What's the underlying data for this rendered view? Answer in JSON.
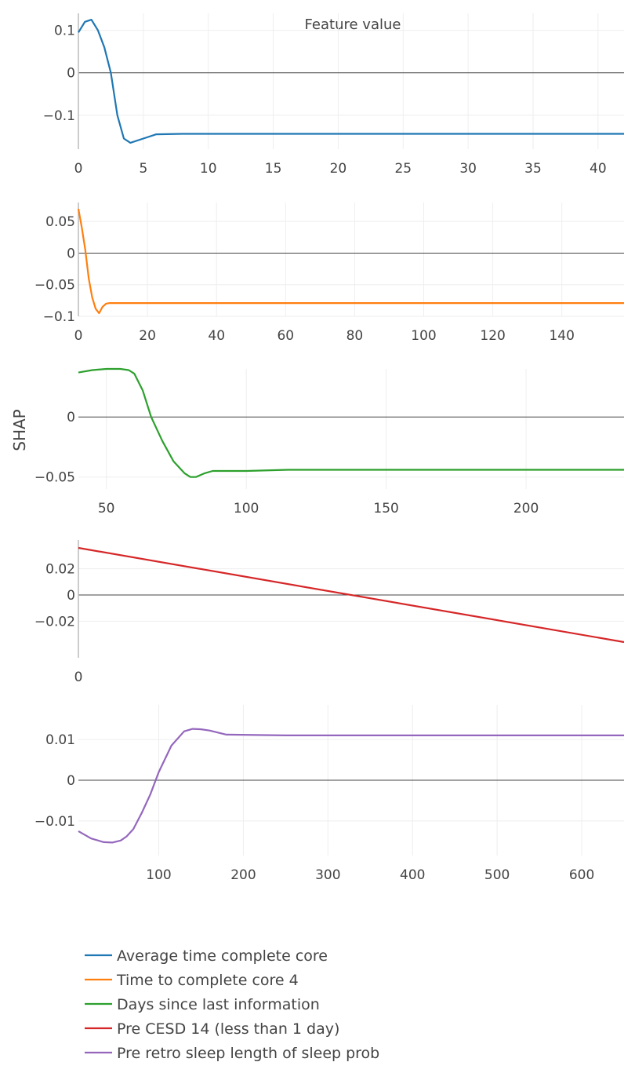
{
  "chart_data": {
    "type": "line",
    "annotation": "Feature value",
    "ylabel": "SHAP",
    "legend_position": "bottom-left",
    "colors": [
      "#1f77b4",
      "#ff7f0e",
      "#2ca02c",
      "#d62728",
      "#9467bd"
    ],
    "legend": [
      "Average time complete core",
      "Time to complete core 4",
      "Days since last information",
      "Pre CESD 14 (less than 1 day)",
      "Pre retro sleep length of sleep prob"
    ],
    "subplots": [
      {
        "series_name": "Average time complete core",
        "xlim": [
          0,
          42
        ],
        "ylim": [
          -0.18,
          0.14
        ],
        "x_ticks": [
          0,
          5,
          10,
          15,
          20,
          25,
          30,
          35,
          40
        ],
        "x_tick_labels": [
          "0",
          "5",
          "10",
          "15",
          "20",
          "25",
          "30",
          "35",
          "40"
        ],
        "y_ticks": [
          0.1,
          0,
          -0.1
        ],
        "y_tick_labels": [
          "0.1",
          "0",
          "−0.1"
        ],
        "x": [
          0,
          0.5,
          1,
          1.5,
          2,
          2.5,
          3,
          3.5,
          4,
          5,
          6,
          8,
          10,
          15,
          20,
          30,
          42
        ],
        "y": [
          0.095,
          0.12,
          0.125,
          0.1,
          0.06,
          0.0,
          -0.1,
          -0.155,
          -0.165,
          -0.155,
          -0.145,
          -0.144,
          -0.144,
          -0.144,
          -0.144,
          -0.144,
          -0.144
        ]
      },
      {
        "series_name": "Time to complete core 4",
        "xlim": [
          0,
          158
        ],
        "ylim": [
          -0.1,
          0.08
        ],
        "x_ticks": [
          0,
          20,
          40,
          60,
          80,
          100,
          120,
          140
        ],
        "x_tick_labels": [
          "0",
          "20",
          "40",
          "60",
          "80",
          "100",
          "120",
          "140"
        ],
        "y_ticks": [
          0.05,
          0,
          -0.05,
          -0.1
        ],
        "y_tick_labels": [
          "0.05",
          "0",
          "−0.05",
          "−0.1"
        ],
        "x": [
          0,
          1,
          2,
          3,
          4,
          5,
          6,
          7,
          8,
          9,
          10,
          15,
          20,
          40,
          80,
          120,
          158
        ],
        "y": [
          0.07,
          0.04,
          0.005,
          -0.04,
          -0.07,
          -0.088,
          -0.095,
          -0.085,
          -0.08,
          -0.079,
          -0.079,
          -0.079,
          -0.079,
          -0.079,
          -0.079,
          -0.079,
          -0.079
        ]
      },
      {
        "series_name": "Days since last information",
        "xlim": [
          40,
          235
        ],
        "ylim": [
          -0.06,
          0.04
        ],
        "x_ticks": [
          50,
          100,
          150,
          200
        ],
        "x_tick_labels": [
          "50",
          "100",
          "150",
          "200"
        ],
        "y_ticks": [
          0,
          -0.05
        ],
        "y_tick_labels": [
          "0",
          "−0.05"
        ],
        "x": [
          40,
          45,
          50,
          55,
          58,
          60,
          63,
          66,
          70,
          74,
          78,
          80,
          82,
          85,
          88,
          100,
          115,
          150,
          200,
          235
        ],
        "y": [
          0.037,
          0.039,
          0.04,
          0.04,
          0.039,
          0.036,
          0.022,
          0.0,
          -0.02,
          -0.037,
          -0.047,
          -0.05,
          -0.05,
          -0.047,
          -0.045,
          -0.045,
          -0.044,
          -0.044,
          -0.044,
          -0.044
        ]
      },
      {
        "series_name": "Pre CESD 14 (less than 1 day)",
        "xlim": [
          0,
          1
        ],
        "ylim": [
          -0.048,
          0.042
        ],
        "x_ticks": [
          0
        ],
        "x_tick_labels": [
          "0"
        ],
        "y_ticks": [
          0.02,
          0,
          -0.02
        ],
        "y_tick_labels": [
          "0.02",
          "0",
          "−0.02"
        ],
        "x": [
          0,
          1
        ],
        "y": [
          0.036,
          -0.036
        ]
      },
      {
        "series_name": "Pre retro sleep length of sleep prob",
        "xlim": [
          5,
          650
        ],
        "ylim": [
          -0.0185,
          0.0185
        ],
        "x_ticks": [
          100,
          200,
          300,
          400,
          500,
          600
        ],
        "x_tick_labels": [
          "100",
          "200",
          "300",
          "400",
          "500",
          "600"
        ],
        "y_ticks": [
          0.01,
          0,
          -0.01
        ],
        "y_tick_labels": [
          "0.01",
          "0",
          "−0.01"
        ],
        "x": [
          5,
          20,
          35,
          45,
          55,
          62,
          70,
          80,
          90,
          100,
          115,
          130,
          140,
          150,
          160,
          180,
          250,
          400,
          650
        ],
        "y": [
          -0.0125,
          -0.0143,
          -0.0152,
          -0.0153,
          -0.0148,
          -0.0138,
          -0.012,
          -0.008,
          -0.0035,
          0.002,
          0.0085,
          0.012,
          0.0126,
          0.0125,
          0.0122,
          0.0112,
          0.011,
          0.011,
          0.011
        ]
      }
    ]
  }
}
